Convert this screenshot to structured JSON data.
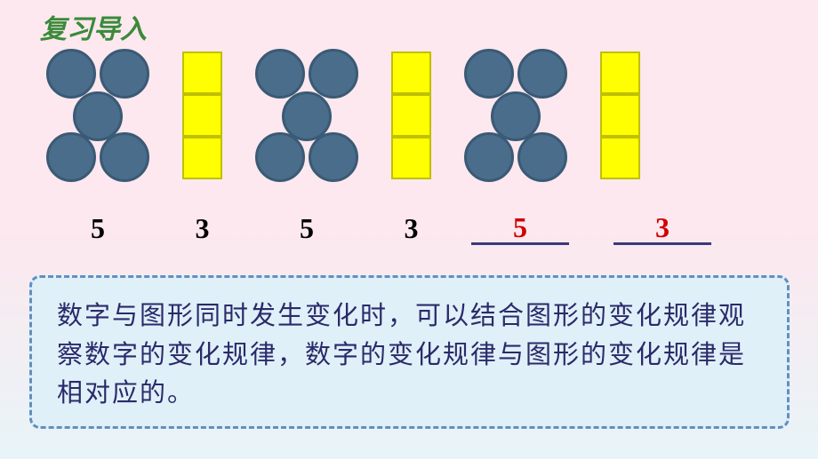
{
  "header": {
    "title": "复习导入"
  },
  "pattern": {
    "groups": [
      {
        "type": "circles",
        "count": 5,
        "color": "#4a6d8c",
        "border_color": "#3a5a75"
      },
      {
        "type": "rects",
        "count": 3,
        "color": "#ffff00",
        "border_color": "#c0c000"
      },
      {
        "type": "circles",
        "count": 5,
        "color": "#4a6d8c",
        "border_color": "#3a5a75"
      },
      {
        "type": "rects",
        "count": 3,
        "color": "#ffff00",
        "border_color": "#c0c000"
      },
      {
        "type": "circles",
        "count": 5,
        "color": "#4a6d8c",
        "border_color": "#3a5a75"
      },
      {
        "type": "rects",
        "count": 3,
        "color": "#ffff00",
        "border_color": "#c0c000"
      }
    ]
  },
  "numbers": {
    "given": [
      {
        "value": "5",
        "color": "black"
      },
      {
        "value": "3",
        "color": "black"
      },
      {
        "value": "5",
        "color": "black"
      },
      {
        "value": "3",
        "color": "black"
      }
    ],
    "answers": [
      {
        "value": "5",
        "color": "red"
      },
      {
        "value": "3",
        "color": "red"
      }
    ]
  },
  "explanation": {
    "text": "数字与图形同时发生变化时，可以结合图形的变化规律观察数字的变化规律，数字的变化规律与图形的变化规律是相对应的。"
  },
  "styling": {
    "background_gradient": [
      "#fce8ee",
      "#e8f4f8"
    ],
    "header_color": "#3a8a3a",
    "number_black": "#000000",
    "number_red": "#d00000",
    "blank_line_color": "#3a3a7a",
    "box_background": "#e0f0f8",
    "box_border": "#6090c0",
    "box_text_color": "#2a2a6a",
    "header_fontsize": 30,
    "number_fontsize": 32,
    "explanation_fontsize": 29
  }
}
